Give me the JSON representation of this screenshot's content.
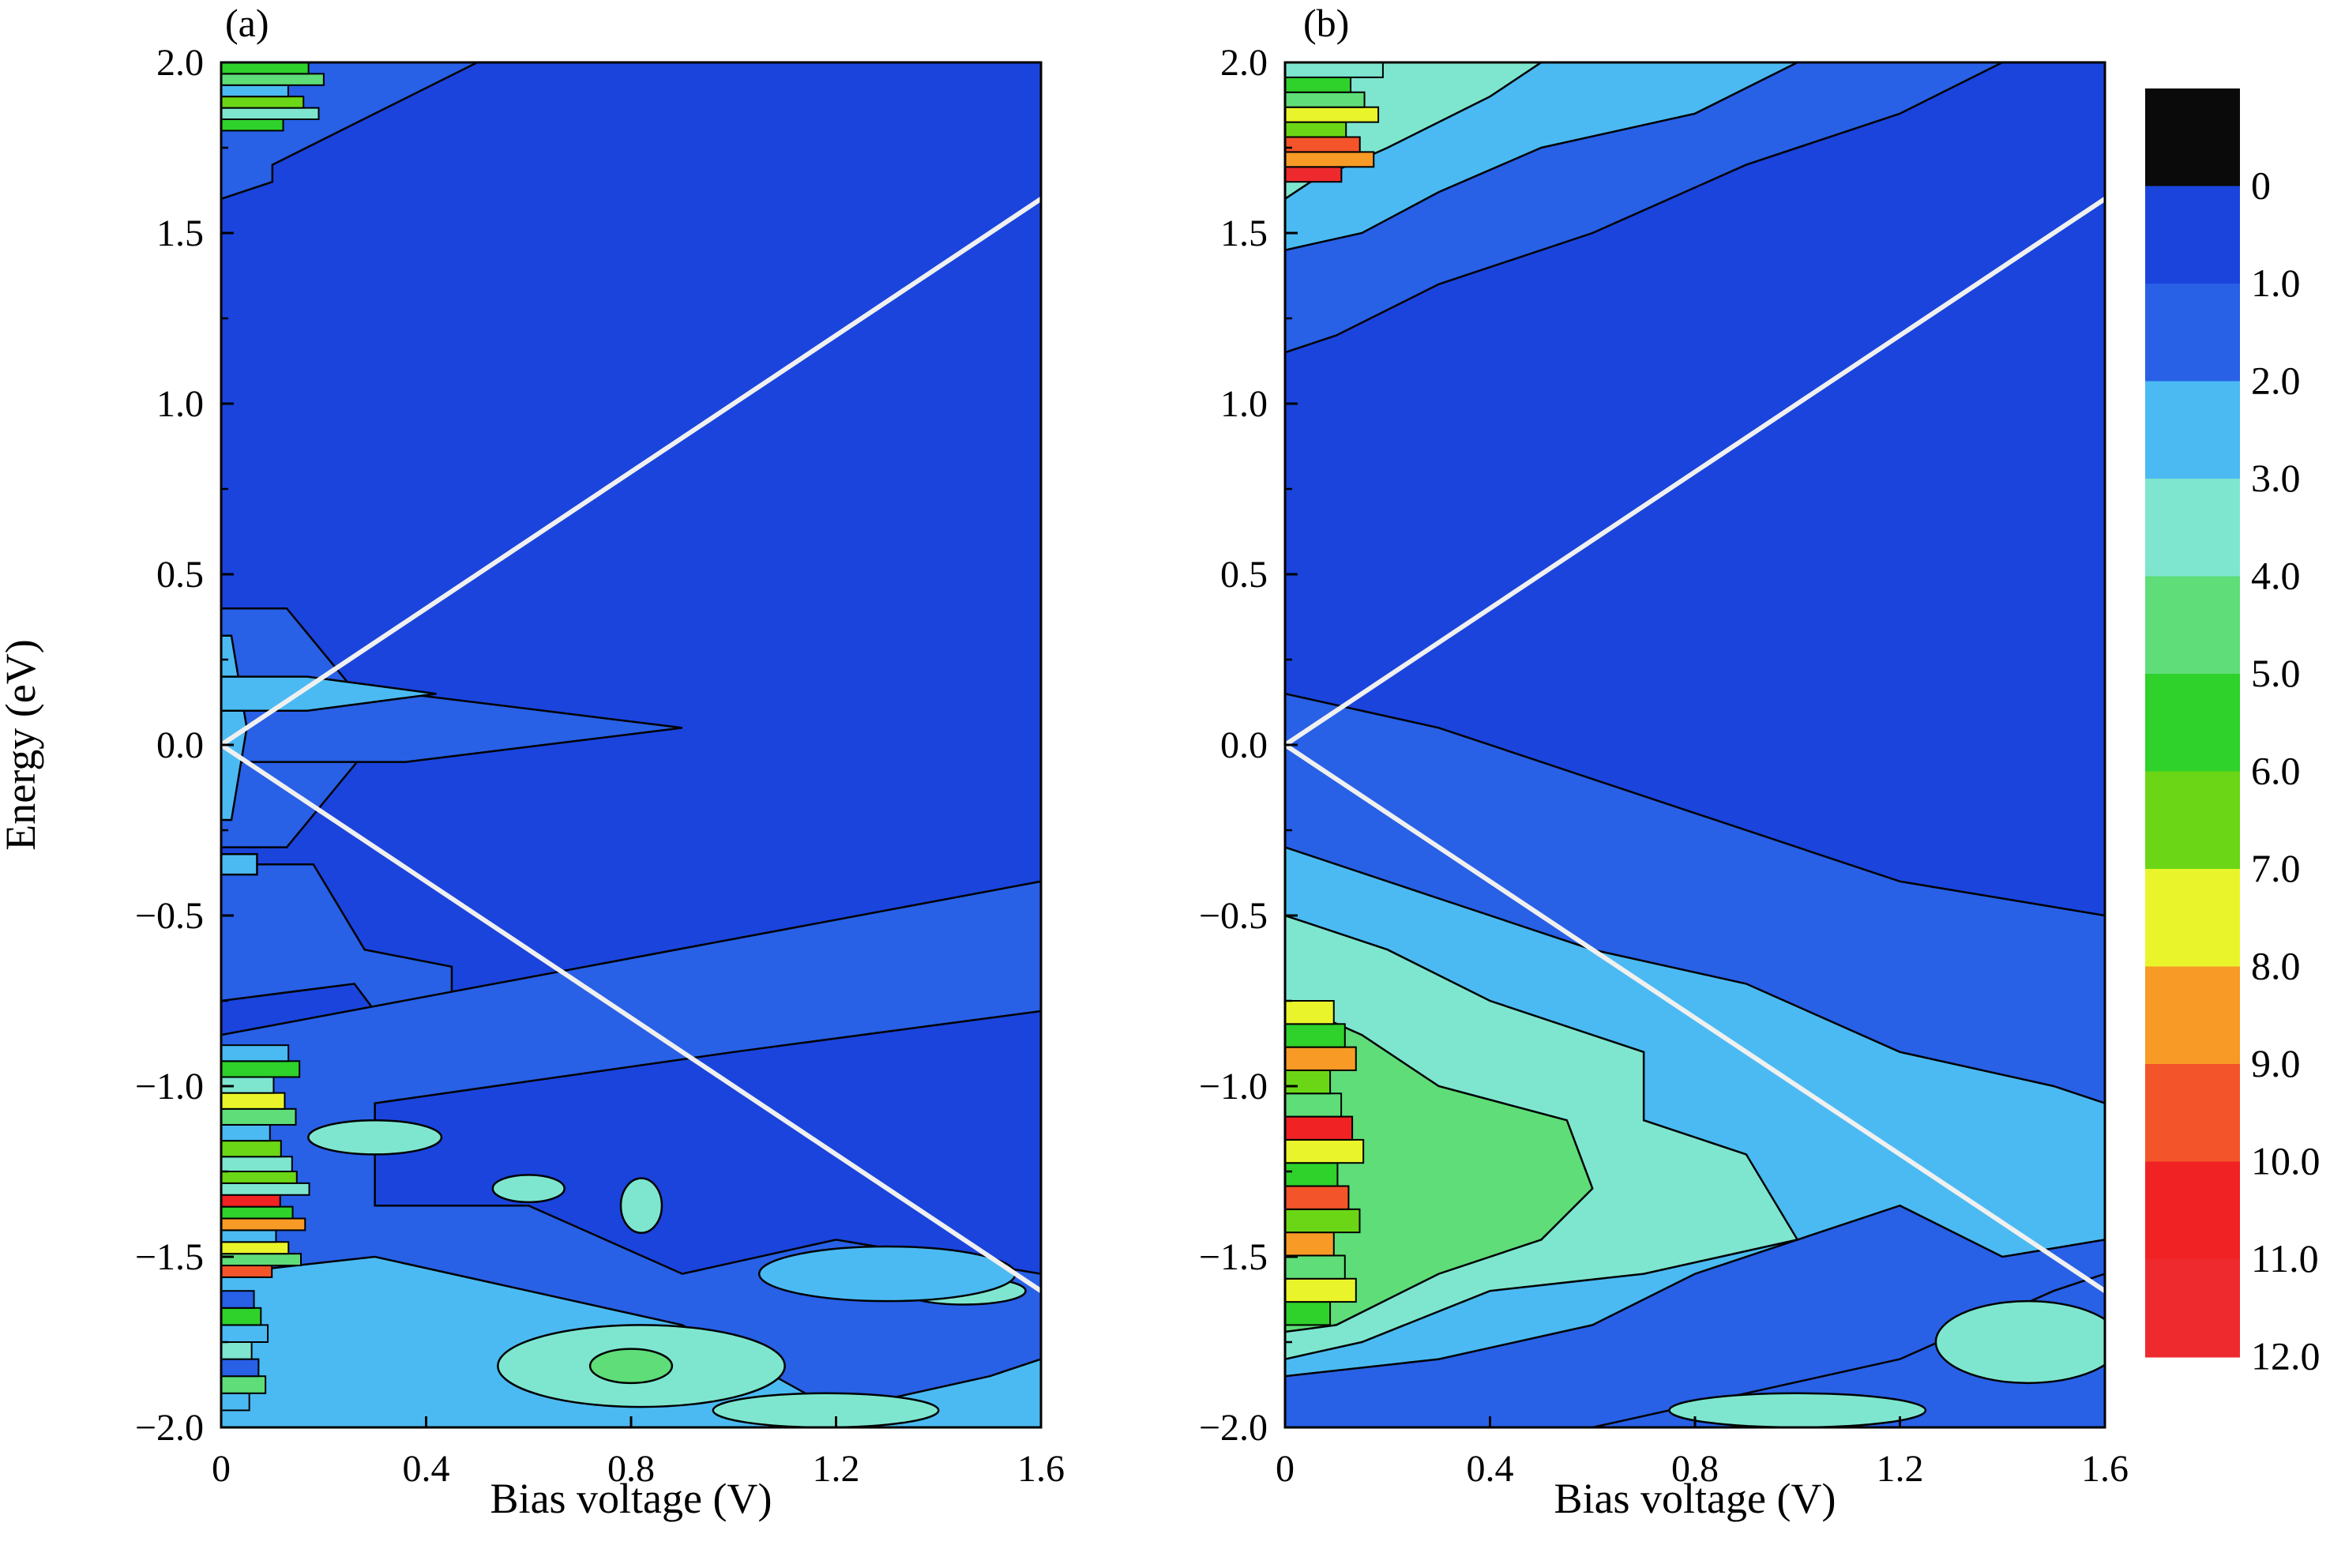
{
  "chart_data": [
    {
      "type": "heatmap",
      "panel_label": "(a)",
      "xlabel": "Bias voltage (V)",
      "ylabel": "Energy (eV)",
      "xlim": [
        0,
        1.6
      ],
      "ylim": [
        -2.0,
        2.0
      ],
      "x_ticks": [
        0,
        0.4,
        0.8,
        1.2,
        1.6
      ],
      "x_tick_labels": [
        "0",
        "0.4",
        "0.8",
        "1.2",
        "1.6"
      ],
      "y_ticks": [
        2.0,
        1.5,
        1.0,
        0.5,
        0.0,
        -0.5,
        -1.0,
        -1.5,
        -2.0
      ],
      "y_tick_labels": [
        "2.0",
        "1.5",
        "1.0",
        "0.5",
        "0.0",
        "−0.5",
        "−1.0",
        "−1.5",
        "−2.0"
      ],
      "bias_window_lines": [
        {
          "x": [
            0,
            1.6
          ],
          "y": [
            0,
            1.6
          ]
        },
        {
          "x": [
            0,
            1.6
          ],
          "y": [
            0,
            -1.6
          ]
        }
      ],
      "regions": [
        {
          "level": 1.5,
          "shape": "band",
          "x0": 0.0,
          "y": [
            -0.3,
            0.4
          ],
          "xr": [
            0.32,
            0.32
          ]
        },
        {
          "level": 1.5,
          "shape": "band",
          "x0": 0.0,
          "y": [
            -0.05,
            0.15
          ],
          "xr": [
            0.9,
            0.9
          ]
        },
        {
          "level": 2.5,
          "shape": "band",
          "x0": 0.0,
          "y": [
            -0.22,
            0.32
          ],
          "xr": [
            0.05,
            0.05
          ]
        },
        {
          "level": 2.5,
          "shape": "band",
          "x0": 0.0,
          "y": [
            0.1,
            0.2
          ],
          "xr": [
            0.42,
            0.42
          ]
        },
        {
          "level": 1.5,
          "shape": "poly",
          "pts": [
            [
              0,
              -0.35
            ],
            [
              0.18,
              -0.35
            ],
            [
              0.28,
              -0.6
            ],
            [
              0.45,
              -0.65
            ],
            [
              0.45,
              -0.78
            ],
            [
              0.3,
              -0.78
            ],
            [
              0.26,
              -0.7
            ],
            [
              0,
              -0.75
            ]
          ]
        },
        {
          "level": 1.5,
          "shape": "poly",
          "pts": [
            [
              0,
              -0.85
            ],
            [
              1.6,
              -0.4
            ],
            [
              1.6,
              -2.0
            ],
            [
              0,
              -2.0
            ]
          ]
        },
        {
          "level": 0.5,
          "shape": "poly",
          "pts": [
            [
              0.3,
              -1.05
            ],
            [
              1.0,
              -0.9
            ],
            [
              1.5,
              -0.8
            ],
            [
              1.6,
              -0.78
            ],
            [
              1.6,
              -1.55
            ],
            [
              1.2,
              -1.45
            ],
            [
              0.9,
              -1.55
            ],
            [
              0.6,
              -1.35
            ],
            [
              0.3,
              -1.35
            ]
          ]
        },
        {
          "level": 2.5,
          "shape": "poly",
          "pts": [
            [
              0,
              -1.55
            ],
            [
              0.3,
              -1.5
            ],
            [
              0.6,
              -1.6
            ],
            [
              0.9,
              -1.7
            ],
            [
              1.2,
              -1.95
            ],
            [
              1.5,
              -1.85
            ],
            [
              1.6,
              -1.8
            ],
            [
              1.6,
              -2.0
            ],
            [
              0,
              -2.0
            ]
          ]
        },
        {
          "level": 3.5,
          "shape": "ellipse",
          "cx": 0.82,
          "cy": -1.82,
          "rx": 0.28,
          "ry": 0.12
        },
        {
          "level": 3.5,
          "shape": "ellipse",
          "cx": 1.18,
          "cy": -1.95,
          "rx": 0.22,
          "ry": 0.05
        },
        {
          "level": 3.5,
          "shape": "ellipse",
          "cx": 1.45,
          "cy": -1.6,
          "rx": 0.12,
          "ry": 0.04
        },
        {
          "level": 2.5,
          "shape": "ellipse",
          "cx": 1.3,
          "cy": -1.55,
          "rx": 0.25,
          "ry": 0.08
        },
        {
          "level": 4.5,
          "shape": "ellipse",
          "cx": 0.8,
          "cy": -1.82,
          "rx": 0.08,
          "ry": 0.05
        },
        {
          "level": 3.5,
          "shape": "ellipse",
          "cx": 0.3,
          "cy": -1.15,
          "rx": 0.13,
          "ry": 0.05
        },
        {
          "level": 3.5,
          "shape": "ellipse",
          "cx": 0.6,
          "cy": -1.3,
          "rx": 0.07,
          "ry": 0.04
        },
        {
          "level": 3.5,
          "shape": "ellipse",
          "cx": 0.82,
          "cy": -1.35,
          "rx": 0.04,
          "ry": 0.08
        },
        {
          "level": 2.5,
          "shape": "rect",
          "x": [
            0,
            0.07
          ],
          "y": [
            -0.38,
            -0.32
          ]
        },
        {
          "level": 5.0,
          "shape": "stripes",
          "x": [
            0,
            0.16
          ],
          "y": [
            -1.3,
            -0.88
          ],
          "levels": [
            6,
            4,
            7,
            3,
            5,
            8,
            4,
            6,
            3
          ]
        },
        {
          "level": 5.0,
          "shape": "stripes",
          "x": [
            0,
            0.18
          ],
          "y": [
            -1.56,
            -1.25
          ],
          "levels": [
            10,
            5,
            8,
            3,
            9,
            6,
            11,
            4,
            7
          ]
        },
        {
          "level": 4.0,
          "shape": "stripes",
          "x": [
            0,
            0.1
          ],
          "y": [
            -1.95,
            -1.6
          ],
          "levels": [
            3,
            5,
            2,
            4,
            3,
            6,
            2
          ]
        },
        {
          "level": 1.5,
          "shape": "poly",
          "pts": [
            [
              0,
              2.0
            ],
            [
              0.5,
              2.0
            ],
            [
              0.3,
              1.85
            ],
            [
              0.1,
              1.7
            ],
            [
              0.1,
              1.65
            ],
            [
              0,
              1.6
            ]
          ]
        },
        {
          "level": 5.0,
          "shape": "stripes",
          "x": [
            0,
            0.22
          ],
          "y": [
            1.8,
            2.0
          ],
          "levels": [
            6,
            4,
            7,
            3,
            5,
            6
          ]
        }
      ]
    },
    {
      "type": "heatmap",
      "panel_label": "(b)",
      "xlabel": "Bias voltage (V)",
      "ylabel": "",
      "xlim": [
        0,
        1.6
      ],
      "ylim": [
        -2.0,
        2.0
      ],
      "x_ticks": [
        0,
        0.4,
        0.8,
        1.2,
        1.6
      ],
      "x_tick_labels": [
        "0",
        "0.4",
        "0.8",
        "1.2",
        "1.6"
      ],
      "y_ticks": [
        2.0,
        1.5,
        1.0,
        0.5,
        0.0,
        -0.5,
        -1.0,
        -1.5,
        -2.0
      ],
      "y_tick_labels": [
        "2.0",
        "1.5",
        "1.0",
        "0.5",
        "0.0",
        "−0.5",
        "−1.0",
        "−1.5",
        "−2.0"
      ],
      "bias_window_lines": [
        {
          "x": [
            0,
            1.6
          ],
          "y": [
            0,
            1.6
          ]
        },
        {
          "x": [
            0,
            1.6
          ],
          "y": [
            0,
            -1.6
          ]
        }
      ],
      "regions": [
        {
          "level": 1.5,
          "shape": "poly",
          "pts": [
            [
              0,
              2.0
            ],
            [
              1.4,
              2.0
            ],
            [
              1.2,
              1.85
            ],
            [
              0.9,
              1.7
            ],
            [
              0.6,
              1.5
            ],
            [
              0.3,
              1.35
            ],
            [
              0.1,
              1.2
            ],
            [
              0,
              1.15
            ]
          ]
        },
        {
          "level": 2.5,
          "shape": "poly",
          "pts": [
            [
              0,
              2.0
            ],
            [
              1.0,
              2.0
            ],
            [
              0.8,
              1.85
            ],
            [
              0.5,
              1.75
            ],
            [
              0.3,
              1.62
            ],
            [
              0.15,
              1.5
            ],
            [
              0,
              1.45
            ]
          ]
        },
        {
          "level": 3.5,
          "shape": "poly",
          "pts": [
            [
              0,
              2.0
            ],
            [
              0.5,
              2.0
            ],
            [
              0.4,
              1.9
            ],
            [
              0.2,
              1.75
            ],
            [
              0.05,
              1.65
            ],
            [
              0,
              1.6
            ]
          ]
        },
        {
          "level": 6.0,
          "shape": "stripes",
          "x": [
            0,
            0.2
          ],
          "y": [
            1.65,
            2.0
          ],
          "levels": [
            12,
            9,
            10,
            7,
            8,
            5,
            6,
            4
          ]
        },
        {
          "level": 1.5,
          "shape": "poly",
          "pts": [
            [
              0,
              0.15
            ],
            [
              0.3,
              0.05
            ],
            [
              0.5,
              -0.05
            ],
            [
              0.8,
              -0.2
            ],
            [
              1.0,
              -0.3
            ],
            [
              1.2,
              -0.4
            ],
            [
              1.6,
              -0.5
            ],
            [
              1.6,
              -2.0
            ],
            [
              0,
              -2.0
            ]
          ]
        },
        {
          "level": 2.5,
          "shape": "poly",
          "pts": [
            [
              0,
              -0.3
            ],
            [
              0.3,
              -0.45
            ],
            [
              0.6,
              -0.6
            ],
            [
              0.9,
              -0.7
            ],
            [
              1.2,
              -0.9
            ],
            [
              1.5,
              -1.0
            ],
            [
              1.6,
              -1.05
            ],
            [
              1.6,
              -1.45
            ],
            [
              1.4,
              -1.5
            ],
            [
              1.2,
              -1.35
            ],
            [
              1.0,
              -1.45
            ],
            [
              0.8,
              -1.55
            ],
            [
              0.6,
              -1.7
            ],
            [
              0.3,
              -1.8
            ],
            [
              0,
              -1.85
            ]
          ]
        },
        {
          "level": 3.5,
          "shape": "poly",
          "pts": [
            [
              0,
              -0.5
            ],
            [
              0.2,
              -0.6
            ],
            [
              0.4,
              -0.75
            ],
            [
              0.7,
              -0.9
            ],
            [
              0.7,
              -1.1
            ],
            [
              0.9,
              -1.2
            ],
            [
              1.0,
              -1.45
            ],
            [
              0.7,
              -1.55
            ],
            [
              0.4,
              -1.6
            ],
            [
              0.15,
              -1.75
            ],
            [
              0,
              -1.8
            ]
          ]
        },
        {
          "level": 4.5,
          "shape": "poly",
          "pts": [
            [
              0,
              -0.75
            ],
            [
              0.15,
              -0.85
            ],
            [
              0.3,
              -1.0
            ],
            [
              0.55,
              -1.1
            ],
            [
              0.6,
              -1.3
            ],
            [
              0.5,
              -1.45
            ],
            [
              0.3,
              -1.55
            ],
            [
              0.1,
              -1.7
            ],
            [
              0,
              -1.72
            ]
          ]
        },
        {
          "level": 1.5,
          "shape": "poly",
          "pts": [
            [
              0.6,
              -2.0
            ],
            [
              0.9,
              -1.9
            ],
            [
              1.2,
              -1.8
            ],
            [
              1.5,
              -1.6
            ],
            [
              1.6,
              -1.55
            ],
            [
              1.6,
              -2.0
            ]
          ]
        },
        {
          "level": 3.5,
          "shape": "ellipse",
          "cx": 1.45,
          "cy": -1.75,
          "rx": 0.18,
          "ry": 0.12
        },
        {
          "level": 3.5,
          "shape": "ellipse",
          "cx": 1.0,
          "cy": -1.95,
          "rx": 0.25,
          "ry": 0.05
        },
        {
          "level": 5.5,
          "shape": "stripes",
          "x": [
            0,
            0.16
          ],
          "y": [
            -1.7,
            -0.75
          ],
          "levels": [
            6,
            8,
            5,
            9,
            7,
            10,
            6,
            8,
            11,
            5,
            7,
            9,
            6,
            8
          ]
        }
      ]
    }
  ],
  "colorbar": {
    "tick_labels": [
      "0",
      "1.0",
      "2.0",
      "3.0",
      "4.0",
      "5.0",
      "6.0",
      "7.0",
      "8.0",
      "9.0",
      "10.0",
      "11.0",
      "12.0"
    ],
    "colors": [
      "#0a0a0a",
      "#1a44dc",
      "#2860e6",
      "#4bbaf2",
      "#7ee6cf",
      "#5fdd78",
      "#2fd12b",
      "#6bd615",
      "#e9f52a",
      "#f79a26",
      "#f4542a",
      "#f02223",
      "#ee2a2e"
    ],
    "band_colors_note": ""
  },
  "colors": {
    "background_level": "#1a44dc",
    "bias_line": "#f0f0f0",
    "contour_line": "#000000"
  }
}
